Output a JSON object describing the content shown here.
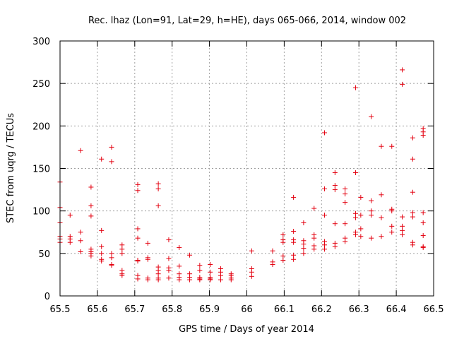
{
  "chart_data": {
    "type": "scatter",
    "title": "Rec. lhaz (Lon=91, Lat=29, h=HE), days 065-066, 2014, window 002",
    "xlabel": "GPS time / Days of year 2014",
    "ylabel": "STEC from uqrg / TECUs",
    "xlim": [
      65.5,
      66.5
    ],
    "ylim": [
      0,
      300
    ],
    "xticks": [
      "65.5",
      "65.6",
      "65.7",
      "65.8",
      "65.9",
      "66",
      "66.1",
      "66.2",
      "66.3",
      "66.4",
      "66.5"
    ],
    "xtick_values": [
      65.5,
      65.6,
      65.7,
      65.8,
      65.9,
      66.0,
      66.1,
      66.2,
      66.3,
      66.4,
      66.5
    ],
    "yticks": [
      "0",
      "50",
      "100",
      "150",
      "200",
      "250",
      "300"
    ],
    "ytick_values": [
      0,
      50,
      100,
      150,
      200,
      250,
      300
    ],
    "grid": true,
    "marker": "plus",
    "series_color": "#e3000f",
    "points": [
      [
        65.5,
        134
      ],
      [
        65.5,
        104
      ],
      [
        65.5,
        86
      ],
      [
        65.5,
        70
      ],
      [
        65.5,
        67
      ],
      [
        65.5,
        63
      ],
      [
        65.527,
        95
      ],
      [
        65.527,
        70
      ],
      [
        65.527,
        67
      ],
      [
        65.527,
        63
      ],
      [
        65.555,
        171
      ],
      [
        65.555,
        75
      ],
      [
        65.555,
        65
      ],
      [
        65.555,
        52
      ],
      [
        65.583,
        128
      ],
      [
        65.583,
        106
      ],
      [
        65.583,
        94
      ],
      [
        65.583,
        55
      ],
      [
        65.583,
        52
      ],
      [
        65.583,
        50
      ],
      [
        65.583,
        47
      ],
      [
        65.611,
        161
      ],
      [
        65.611,
        77
      ],
      [
        65.611,
        58
      ],
      [
        65.611,
        50
      ],
      [
        65.611,
        43
      ],
      [
        65.611,
        41
      ],
      [
        65.638,
        175
      ],
      [
        65.638,
        158
      ],
      [
        65.638,
        50
      ],
      [
        65.638,
        45
      ],
      [
        65.638,
        37
      ],
      [
        65.638,
        36
      ],
      [
        65.666,
        60
      ],
      [
        65.666,
        55
      ],
      [
        65.666,
        50
      ],
      [
        65.666,
        30
      ],
      [
        65.666,
        26
      ],
      [
        65.666,
        24
      ],
      [
        65.708,
        131
      ],
      [
        65.708,
        124
      ],
      [
        65.708,
        79
      ],
      [
        65.708,
        68
      ],
      [
        65.708,
        42
      ],
      [
        65.708,
        41
      ],
      [
        65.708,
        24
      ],
      [
        65.708,
        20
      ],
      [
        65.735,
        62
      ],
      [
        65.735,
        45
      ],
      [
        65.735,
        43
      ],
      [
        65.735,
        21
      ],
      [
        65.735,
        19
      ],
      [
        65.763,
        132
      ],
      [
        65.763,
        126
      ],
      [
        65.763,
        106
      ],
      [
        65.763,
        34
      ],
      [
        65.763,
        30
      ],
      [
        65.763,
        26
      ],
      [
        65.763,
        21
      ],
      [
        65.763,
        19
      ],
      [
        65.791,
        66
      ],
      [
        65.791,
        44
      ],
      [
        65.791,
        33
      ],
      [
        65.791,
        30
      ],
      [
        65.791,
        21
      ],
      [
        65.819,
        57
      ],
      [
        65.819,
        35
      ],
      [
        65.819,
        26
      ],
      [
        65.819,
        22
      ],
      [
        65.819,
        19
      ],
      [
        65.847,
        48
      ],
      [
        65.847,
        26
      ],
      [
        65.847,
        22
      ],
      [
        65.847,
        19
      ],
      [
        65.874,
        36
      ],
      [
        65.874,
        30
      ],
      [
        65.874,
        22
      ],
      [
        65.874,
        20
      ],
      [
        65.874,
        19
      ],
      [
        65.902,
        37
      ],
      [
        65.902,
        28
      ],
      [
        65.902,
        22
      ],
      [
        65.902,
        20
      ],
      [
        65.902,
        19
      ],
      [
        65.93,
        32
      ],
      [
        65.93,
        28
      ],
      [
        65.93,
        24
      ],
      [
        65.93,
        19
      ],
      [
        65.958,
        26
      ],
      [
        65.958,
        24
      ],
      [
        65.958,
        21
      ],
      [
        65.958,
        19
      ],
      [
        66.013,
        53
      ],
      [
        66.013,
        32
      ],
      [
        66.013,
        28
      ],
      [
        66.013,
        23
      ],
      [
        66.069,
        53
      ],
      [
        66.069,
        40
      ],
      [
        66.069,
        37
      ],
      [
        66.097,
        72
      ],
      [
        66.097,
        66
      ],
      [
        66.097,
        63
      ],
      [
        66.097,
        47
      ],
      [
        66.097,
        42
      ],
      [
        66.125,
        116
      ],
      [
        66.125,
        76
      ],
      [
        66.125,
        66
      ],
      [
        66.125,
        63
      ],
      [
        66.125,
        48
      ],
      [
        66.125,
        43
      ],
      [
        66.152,
        86
      ],
      [
        66.152,
        65
      ],
      [
        66.152,
        61
      ],
      [
        66.152,
        56
      ],
      [
        66.152,
        50
      ],
      [
        66.18,
        103
      ],
      [
        66.18,
        72
      ],
      [
        66.18,
        68
      ],
      [
        66.18,
        59
      ],
      [
        66.18,
        55
      ],
      [
        66.208,
        192
      ],
      [
        66.208,
        126
      ],
      [
        66.208,
        95
      ],
      [
        66.208,
        64
      ],
      [
        66.208,
        60
      ],
      [
        66.208,
        55
      ],
      [
        66.236,
        145
      ],
      [
        66.236,
        130
      ],
      [
        66.236,
        125
      ],
      [
        66.236,
        85
      ],
      [
        66.236,
        62
      ],
      [
        66.236,
        58
      ],
      [
        66.263,
        126
      ],
      [
        66.263,
        120
      ],
      [
        66.263,
        110
      ],
      [
        66.263,
        85
      ],
      [
        66.263,
        68
      ],
      [
        66.263,
        64
      ],
      [
        66.291,
        245
      ],
      [
        66.291,
        145
      ],
      [
        66.291,
        97
      ],
      [
        66.291,
        92
      ],
      [
        66.291,
        75
      ],
      [
        66.291,
        72
      ],
      [
        66.305,
        116
      ],
      [
        66.305,
        95
      ],
      [
        66.305,
        79
      ],
      [
        66.305,
        70
      ],
      [
        66.333,
        211
      ],
      [
        66.333,
        112
      ],
      [
        66.333,
        100
      ],
      [
        66.333,
        95
      ],
      [
        66.333,
        68
      ],
      [
        66.36,
        176
      ],
      [
        66.36,
        119
      ],
      [
        66.36,
        92
      ],
      [
        66.36,
        70
      ],
      [
        66.388,
        176
      ],
      [
        66.388,
        102
      ],
      [
        66.388,
        100
      ],
      [
        66.388,
        82
      ],
      [
        66.388,
        75
      ],
      [
        66.416,
        266
      ],
      [
        66.416,
        249
      ],
      [
        66.416,
        93
      ],
      [
        66.416,
        82
      ],
      [
        66.416,
        77
      ],
      [
        66.416,
        72
      ],
      [
        66.444,
        186
      ],
      [
        66.444,
        161
      ],
      [
        66.444,
        122
      ],
      [
        66.444,
        98
      ],
      [
        66.444,
        93
      ],
      [
        66.444,
        63
      ],
      [
        66.444,
        60
      ],
      [
        66.472,
        197
      ],
      [
        66.472,
        193
      ],
      [
        66.472,
        189
      ],
      [
        66.472,
        98
      ],
      [
        66.472,
        86
      ],
      [
        66.472,
        71
      ],
      [
        66.472,
        58
      ],
      [
        66.472,
        57
      ]
    ]
  }
}
